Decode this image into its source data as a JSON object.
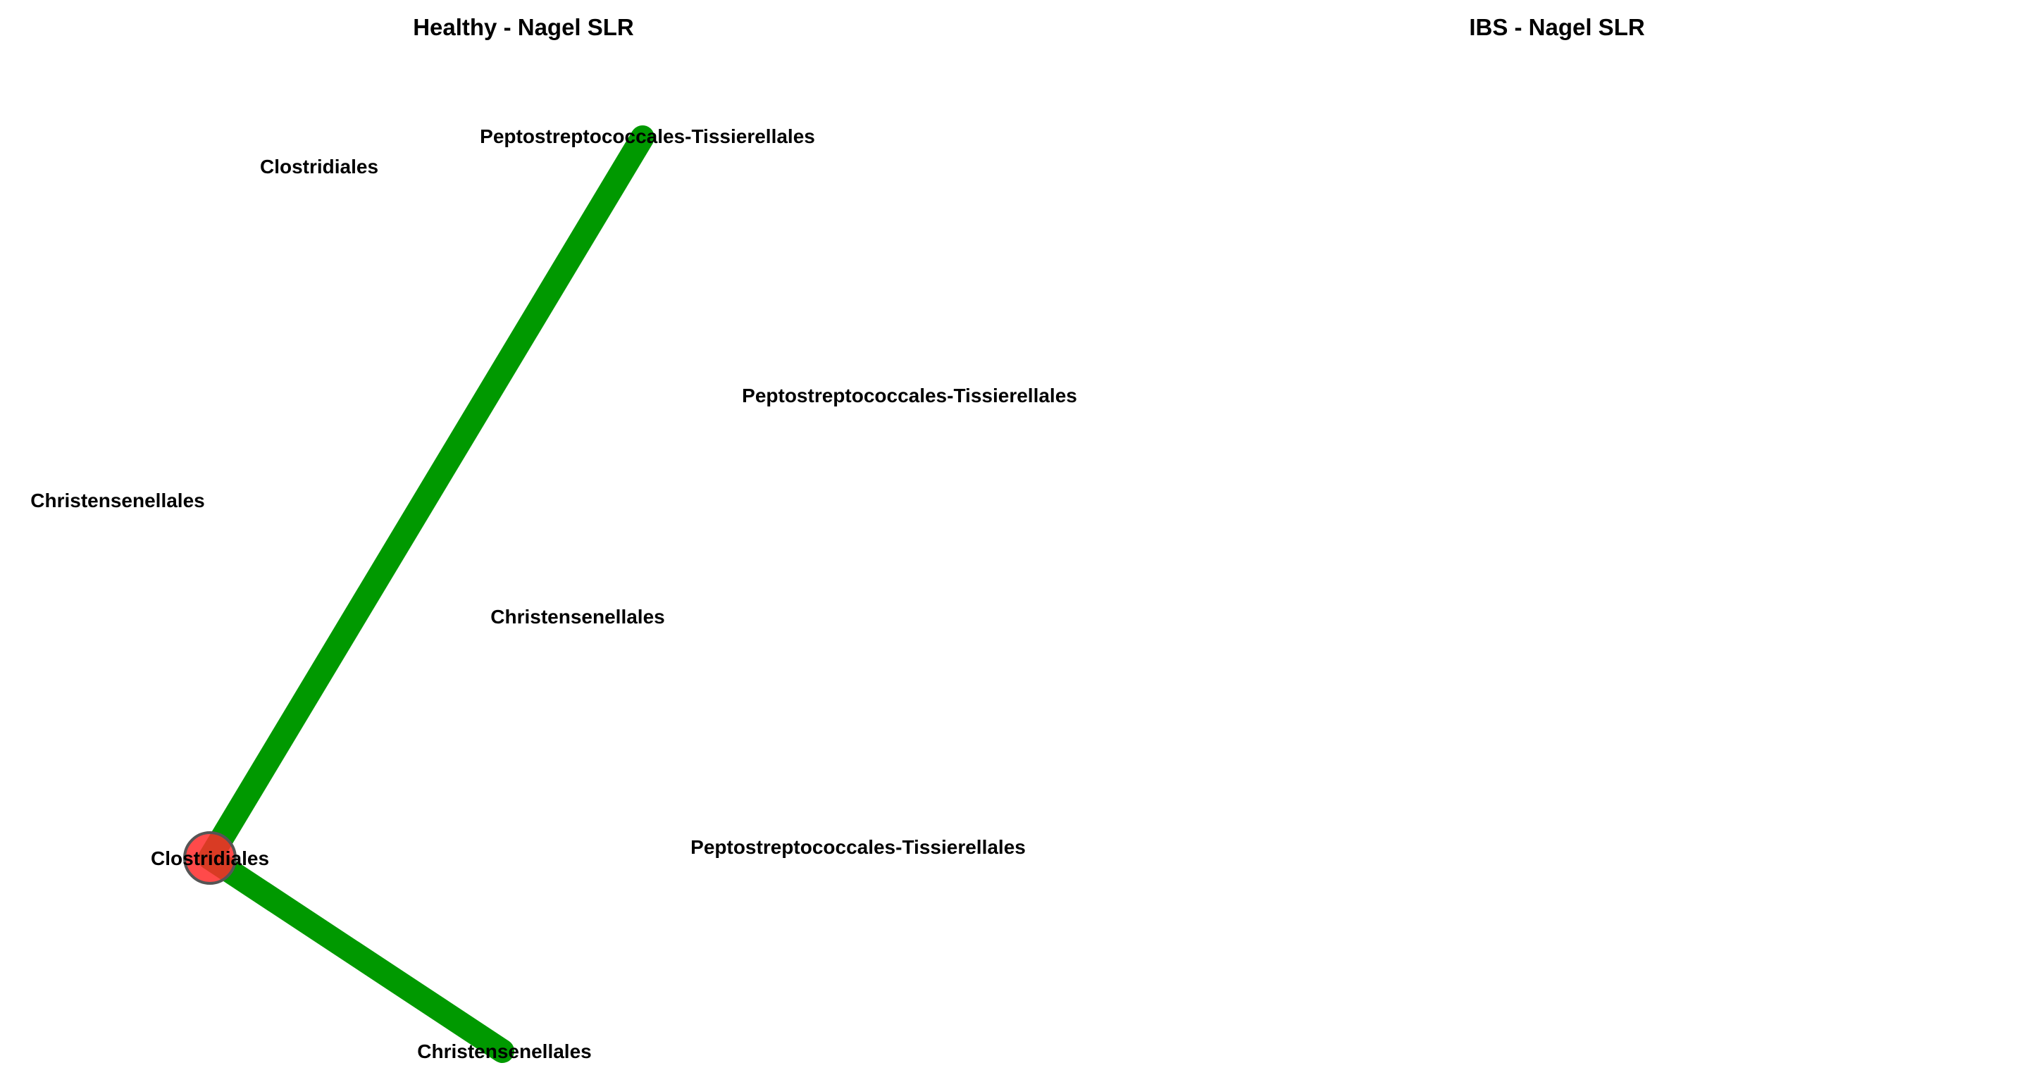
{
  "panels": [
    {
      "title": "Healthy - Nagel SLR",
      "nodes": [
        {
          "id": "n1",
          "label": "Clostridiales"
        },
        {
          "id": "n2",
          "label": "Peptostreptococcales-Tissierellales"
        },
        {
          "id": "n3",
          "label": "Christensenellales"
        },
        {
          "id": "n4",
          "label": "Peptostreptococcales-Tissierellales"
        },
        {
          "id": "n5",
          "label": "Christensenellales"
        },
        {
          "id": "n6",
          "label": "Peptostreptococcales-Tissierellales"
        },
        {
          "id": "n7",
          "label": "Clostridiales",
          "highlighted": true
        },
        {
          "id": "n8",
          "label": "Christensenellales"
        }
      ],
      "edges": [
        {
          "from": "n7",
          "to": "n2",
          "sign": "positive"
        },
        {
          "from": "n7",
          "to": "n8",
          "sign": "positive"
        }
      ]
    },
    {
      "title": "IBS - Nagel SLR",
      "nodes": [],
      "edges": []
    }
  ],
  "colors": {
    "edge_positive": "#009900",
    "node_fill": "#ff2a2a",
    "node_stroke": "#555555",
    "text": "#000000"
  }
}
